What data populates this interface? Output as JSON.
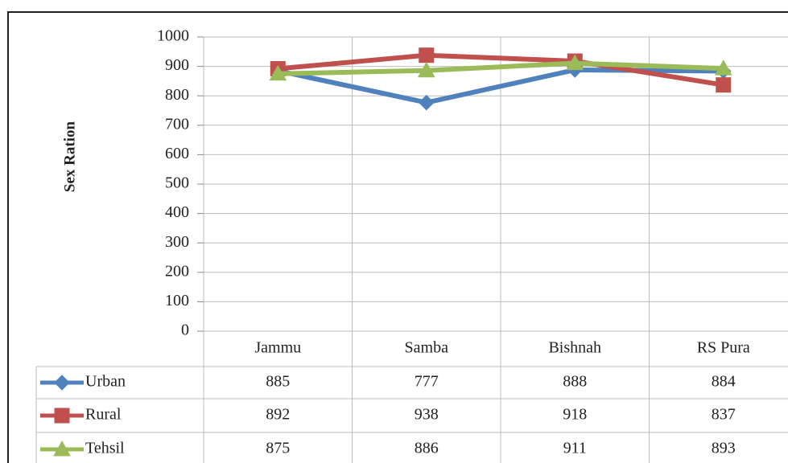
{
  "chart_data": {
    "type": "line",
    "y_label": "Sex Ration",
    "categories": [
      "Jammu",
      "Samba",
      "Bishnah",
      "RS Pura"
    ],
    "series": [
      {
        "name": "Urban",
        "color": "#4f81bd",
        "marker": "diamond",
        "values": [
          885,
          777,
          888,
          884
        ]
      },
      {
        "name": "Rural",
        "color": "#c0504d",
        "marker": "square",
        "values": [
          892,
          938,
          918,
          837
        ]
      },
      {
        "name": "Tehsil",
        "color": "#9bbb59",
        "marker": "triangle",
        "values": [
          875,
          886,
          911,
          893
        ]
      }
    ],
    "ylim": [
      0,
      1000
    ],
    "yticks": [
      0,
      100,
      200,
      300,
      400,
      500,
      600,
      700,
      800,
      900,
      1000
    ],
    "grid": true
  }
}
